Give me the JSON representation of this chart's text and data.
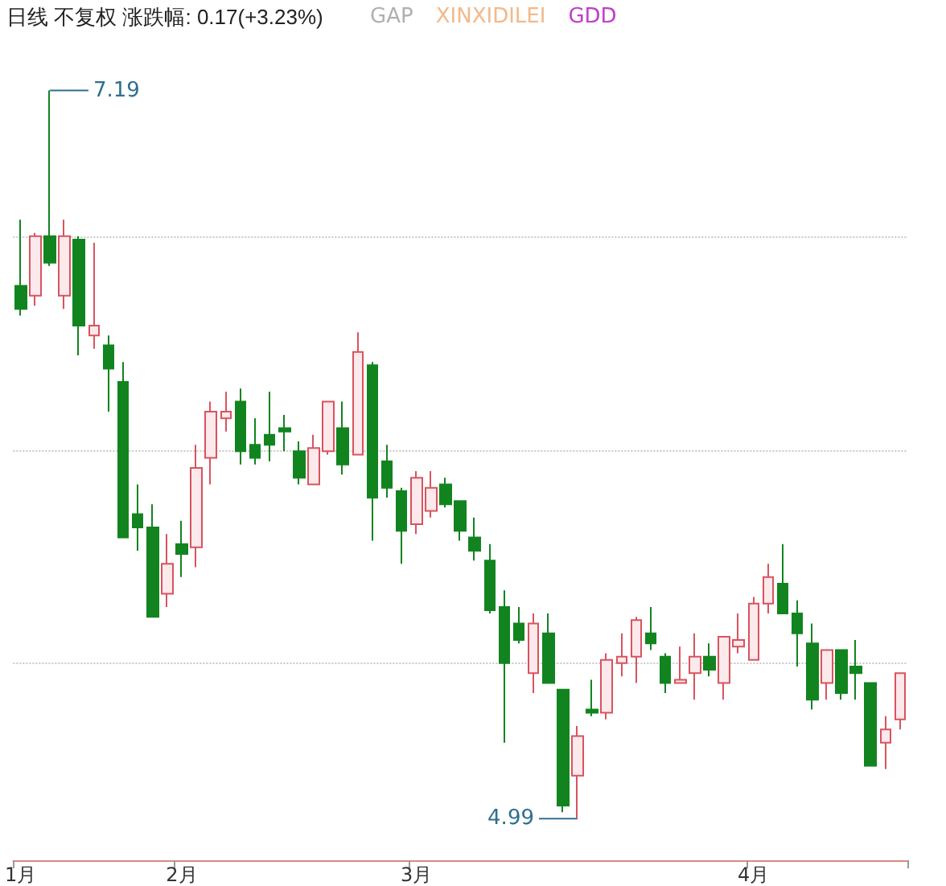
{
  "chart_data": {
    "type": "candlestick",
    "title": "日线 不复权 涨跌幅: 0.17(+3.23%)",
    "annotations": [
      "GAP",
      "XINXIDILEI",
      "GDD",
      "7.19",
      "4.99"
    ],
    "categories": [
      "1月",
      null,
      null,
      null,
      null,
      null,
      null,
      null,
      null,
      null,
      null,
      "2月",
      null,
      null,
      null,
      null,
      null,
      null,
      null,
      null,
      null,
      null,
      null,
      null,
      null,
      null,
      null,
      "3月",
      null,
      null,
      null,
      null,
      null,
      null,
      null,
      null,
      null,
      null,
      null,
      null,
      null,
      null,
      null,
      null,
      null,
      null,
      null,
      null,
      null,
      null,
      "4月",
      null,
      null,
      null,
      null,
      null,
      null,
      null,
      null,
      null,
      null
    ],
    "ohlc": [
      [
        6.6,
        6.8,
        6.51,
        6.53
      ],
      [
        6.57,
        6.76,
        6.54,
        6.75
      ],
      [
        6.75,
        7.19,
        6.66,
        6.67
      ],
      [
        6.57,
        6.8,
        6.53,
        6.75
      ],
      [
        6.74,
        6.75,
        6.39,
        6.48
      ],
      [
        6.45,
        6.73,
        6.41,
        6.48
      ],
      [
        6.42,
        6.45,
        6.22,
        6.35
      ],
      [
        6.31,
        6.37,
        5.84,
        5.84
      ],
      [
        5.91,
        6.0,
        5.8,
        5.87
      ],
      [
        5.87,
        5.94,
        5.6,
        5.6
      ],
      [
        5.67,
        5.85,
        5.63,
        5.76
      ],
      [
        5.82,
        5.89,
        5.72,
        5.79
      ],
      [
        5.81,
        6.12,
        5.75,
        6.05
      ],
      [
        6.08,
        6.25,
        6.0,
        6.22
      ],
      [
        6.2,
        6.28,
        6.16,
        6.22
      ],
      [
        6.25,
        6.29,
        6.06,
        6.1
      ],
      [
        6.12,
        6.2,
        6.06,
        6.08
      ],
      [
        6.15,
        6.28,
        6.07,
        6.12
      ],
      [
        6.17,
        6.21,
        6.1,
        6.16
      ],
      [
        6.1,
        6.13,
        6.0,
        6.02
      ],
      [
        6.0,
        6.15,
        6.0,
        6.11
      ],
      [
        6.1,
        6.25,
        6.09,
        6.25
      ],
      [
        6.17,
        6.25,
        6.03,
        6.06
      ],
      [
        6.09,
        6.46,
        6.09,
        6.4
      ],
      [
        6.36,
        6.37,
        5.83,
        5.96
      ],
      [
        6.07,
        6.12,
        5.96,
        5.99
      ],
      [
        5.98,
        5.99,
        5.76,
        5.86
      ],
      [
        5.88,
        6.04,
        5.85,
        6.02
      ],
      [
        5.92,
        6.04,
        5.9,
        5.99
      ],
      [
        6.0,
        6.02,
        5.93,
        5.94
      ],
      [
        5.95,
        5.95,
        5.83,
        5.86
      ],
      [
        5.84,
        5.9,
        5.77,
        5.8
      ],
      [
        5.77,
        5.82,
        5.61,
        5.62
      ],
      [
        5.63,
        5.68,
        5.22,
        5.46
      ],
      [
        5.58,
        5.63,
        5.52,
        5.53
      ],
      [
        5.43,
        5.61,
        5.37,
        5.58
      ],
      [
        5.55,
        5.61,
        5.4,
        5.4
      ],
      [
        5.38,
        5.38,
        5.01,
        5.03
      ],
      [
        5.12,
        5.27,
        4.99,
        5.24
      ],
      [
        5.32,
        5.41,
        5.3,
        5.31
      ],
      [
        5.31,
        5.49,
        5.29,
        5.47
      ],
      [
        5.46,
        5.55,
        5.42,
        5.48
      ],
      [
        5.48,
        5.6,
        5.4,
        5.59
      ],
      [
        5.55,
        5.63,
        5.5,
        5.52
      ],
      [
        5.48,
        5.49,
        5.37,
        5.4
      ],
      [
        5.4,
        5.51,
        5.4,
        5.41
      ],
      [
        5.43,
        5.55,
        5.35,
        5.48
      ],
      [
        5.48,
        5.52,
        5.42,
        5.44
      ],
      [
        5.4,
        5.54,
        5.35,
        5.54
      ],
      [
        5.51,
        5.61,
        5.49,
        5.53
      ],
      [
        5.47,
        5.66,
        5.47,
        5.64
      ],
      [
        5.64,
        5.76,
        5.61,
        5.72
      ],
      [
        5.7,
        5.82,
        5.61,
        5.61
      ],
      [
        5.61,
        5.65,
        5.45,
        5.55
      ],
      [
        5.52,
        5.58,
        5.32,
        5.35
      ],
      [
        5.4,
        5.5,
        5.35,
        5.5
      ],
      [
        5.5,
        5.5,
        5.35,
        5.37
      ],
      [
        5.45,
        5.53,
        5.35,
        5.43
      ],
      [
        5.4,
        5.4,
        5.15,
        5.15
      ],
      [
        5.22,
        5.3,
        5.14,
        5.26
      ],
      [
        5.29,
        5.43,
        5.26,
        5.43
      ]
    ],
    "yticks": [
      {
        "value": 5.46,
        "label": null
      },
      {
        "value": 6.1,
        "label": null
      },
      {
        "value": 6.75,
        "label": null
      }
    ],
    "grid": "y",
    "tick_labels": "x"
  }
}
